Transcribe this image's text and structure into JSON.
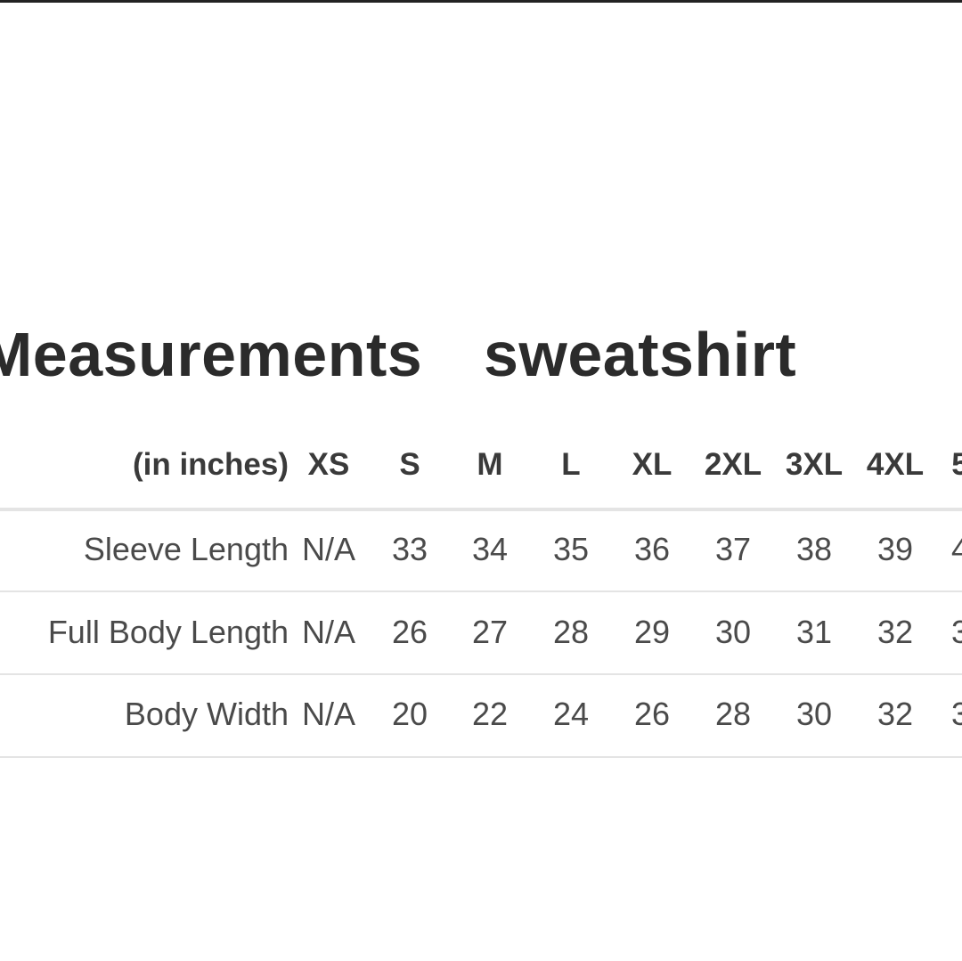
{
  "title": {
    "part1": "Measurements",
    "part2": "sweatshirt"
  },
  "table": {
    "unit_label": "(in inches)",
    "columns": [
      "XS",
      "S",
      "M",
      "L",
      "XL",
      "2XL",
      "3XL",
      "4XL",
      "5"
    ],
    "rows": [
      {
        "label": "Sleeve Length",
        "values": [
          "N/A",
          "33",
          "34",
          "35",
          "36",
          "37",
          "38",
          "39",
          "4"
        ]
      },
      {
        "label": "Full Body Length",
        "values": [
          "N/A",
          "26",
          "27",
          "28",
          "29",
          "30",
          "31",
          "32",
          "3"
        ]
      },
      {
        "label": "Body Width",
        "values": [
          "N/A",
          "20",
          "22",
          "24",
          "26",
          "28",
          "30",
          "32",
          "3"
        ]
      }
    ]
  }
}
